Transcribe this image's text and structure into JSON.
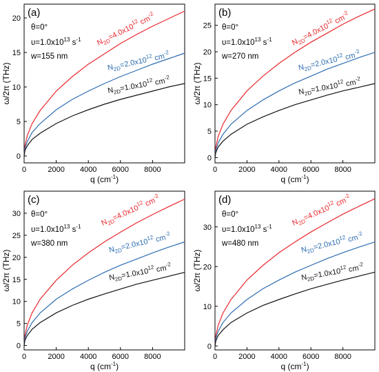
{
  "chart_data": [
    {
      "type": "line",
      "panel_label": "(a)",
      "annotations": [
        "θ=0°",
        "υ=1.0x10",
        "13",
        " s",
        "-1",
        "w=155 nm"
      ],
      "xlabel": "q (cm",
      "xlabel_sup": "-1",
      "xlabel_end": ")",
      "ylabel": "ω/2π (THz)",
      "xlim": [
        0,
        10000
      ],
      "ylim": [
        -1,
        22
      ],
      "xticks": [
        0,
        2000,
        4000,
        6000,
        8000
      ],
      "yticks": [
        0,
        5,
        10,
        15,
        20
      ],
      "series": [
        {
          "name": "N2D=4.0x1012 cm-2",
          "label": [
            "N",
            "2D",
            "=4.0x10",
            "12",
            " cm",
            "-2"
          ],
          "color": "#e8262b",
          "x": [
            0,
            50,
            200,
            500,
            1000,
            2000,
            3000,
            4000,
            5000,
            6000,
            7000,
            8000,
            9000,
            10000
          ],
          "y": [
            0,
            1.5,
            3.0,
            4.7,
            6.6,
            9.4,
            11.5,
            13.3,
            14.8,
            16.3,
            17.6,
            18.8,
            19.9,
            21.0
          ]
        },
        {
          "name": "N2D=2.0x1012 cm-2",
          "label": [
            "N",
            "2D",
            "=2.0x10",
            "12",
            " cm",
            "-2"
          ],
          "color": "#2c6cb0",
          "x": [
            0,
            50,
            200,
            500,
            1000,
            2000,
            3000,
            4000,
            5000,
            6000,
            7000,
            8000,
            9000,
            10000
          ],
          "y": [
            0,
            1.1,
            2.1,
            3.4,
            4.7,
            6.7,
            8.2,
            9.4,
            10.5,
            11.5,
            12.4,
            13.3,
            14.1,
            14.9
          ]
        },
        {
          "name": "N2D=1.0x1012 cm-2",
          "label": [
            "N",
            "2D",
            "=1.0x10",
            "12",
            " cm",
            "-2"
          ],
          "color": "#111111",
          "x": [
            0,
            50,
            200,
            500,
            1000,
            2000,
            3000,
            4000,
            5000,
            6000,
            7000,
            8000,
            9000,
            10000
          ],
          "y": [
            0,
            0.8,
            1.5,
            2.4,
            3.3,
            4.7,
            5.8,
            6.7,
            7.5,
            8.2,
            8.8,
            9.4,
            10.0,
            10.5
          ]
        }
      ]
    },
    {
      "type": "line",
      "panel_label": "(b)",
      "annotations": [
        "θ=0°",
        "υ=1.0x10",
        "13",
        " s",
        "-1",
        "w=270 nm"
      ],
      "xlabel": "q (cm",
      "xlabel_sup": "-1",
      "xlabel_end": ")",
      "ylabel": "ω/2π (THz)",
      "xlim": [
        0,
        10000
      ],
      "ylim": [
        -1,
        29
      ],
      "xticks": [
        0,
        2000,
        4000,
        6000,
        8000
      ],
      "yticks": [
        0,
        5,
        10,
        15,
        20,
        25
      ],
      "series": [
        {
          "name": "N2D=4.0x1012 cm-2",
          "label": [
            "N",
            "2D",
            "=4.0x10",
            "12",
            " cm",
            "-2"
          ],
          "color": "#e8262b",
          "x": [
            0,
            50,
            200,
            500,
            1000,
            2000,
            3000,
            4000,
            5000,
            6000,
            7000,
            8000,
            9000,
            10000
          ],
          "y": [
            0,
            2.0,
            4.0,
            6.3,
            8.9,
            12.6,
            15.4,
            17.8,
            19.9,
            21.8,
            23.5,
            25.2,
            26.7,
            28.1
          ]
        },
        {
          "name": "N2D=2.0x1012 cm-2",
          "label": [
            "N",
            "2D",
            "=2.0x10",
            "12",
            " cm",
            "-2"
          ],
          "color": "#2c6cb0",
          "x": [
            0,
            50,
            200,
            500,
            1000,
            2000,
            3000,
            4000,
            5000,
            6000,
            7000,
            8000,
            9000,
            10000
          ],
          "y": [
            0,
            1.4,
            2.8,
            4.4,
            6.3,
            8.9,
            10.9,
            12.6,
            14.1,
            15.4,
            16.7,
            17.8,
            18.9,
            19.9
          ]
        },
        {
          "name": "N2D=1.0x1012 cm-2",
          "label": [
            "N",
            "2D",
            "=1.0x10",
            "12",
            " cm",
            "-2"
          ],
          "color": "#111111",
          "x": [
            0,
            50,
            200,
            500,
            1000,
            2000,
            3000,
            4000,
            5000,
            6000,
            7000,
            8000,
            9000,
            10000
          ],
          "y": [
            0,
            1.0,
            2.0,
            3.1,
            4.4,
            6.3,
            7.7,
            8.9,
            10.0,
            10.9,
            11.8,
            12.6,
            13.3,
            14.0
          ]
        }
      ]
    },
    {
      "type": "line",
      "panel_label": "(c)",
      "annotations": [
        "θ=0°",
        "υ=1.0x10",
        "13",
        " s",
        "-1",
        "w=380 nm"
      ],
      "xlabel": "q (cm",
      "xlabel_sup": "-1",
      "xlabel_end": ")",
      "ylabel": "ω/2π (THz)",
      "xlim": [
        0,
        10000
      ],
      "ylim": [
        -1,
        35
      ],
      "xticks": [
        0,
        2000,
        4000,
        6000,
        8000
      ],
      "yticks": [
        0,
        5,
        10,
        15,
        20,
        25,
        30
      ],
      "series": [
        {
          "name": "N2D=4.0x1012 cm-2",
          "label": [
            "N",
            "2D",
            "=4.0x10",
            "12",
            " cm",
            "-2"
          ],
          "color": "#e8262b",
          "x": [
            0,
            50,
            200,
            500,
            1000,
            2000,
            3000,
            4000,
            5000,
            6000,
            7000,
            8000,
            9000,
            10000
          ],
          "y": [
            0,
            2.3,
            4.7,
            7.4,
            10.5,
            14.8,
            18.2,
            21.0,
            23.5,
            25.7,
            27.8,
            29.7,
            31.5,
            33.2
          ]
        },
        {
          "name": "N2D=2.0x1012 cm-2",
          "label": [
            "N",
            "2D",
            "=2.0x10",
            "12",
            " cm",
            "-2"
          ],
          "color": "#2c6cb0",
          "x": [
            0,
            50,
            200,
            500,
            1000,
            2000,
            3000,
            4000,
            5000,
            6000,
            7000,
            8000,
            9000,
            10000
          ],
          "y": [
            0,
            1.7,
            3.3,
            5.2,
            7.4,
            10.5,
            12.8,
            14.8,
            16.6,
            18.2,
            19.6,
            21.0,
            22.3,
            23.5
          ]
        },
        {
          "name": "N2D=1.0x1012 cm-2",
          "label": [
            "N",
            "2D",
            "=1.0x10",
            "12",
            " cm",
            "-2"
          ],
          "color": "#111111",
          "x": [
            0,
            50,
            200,
            500,
            1000,
            2000,
            3000,
            4000,
            5000,
            6000,
            7000,
            8000,
            9000,
            10000
          ],
          "y": [
            0,
            1.2,
            2.3,
            3.7,
            5.2,
            7.4,
            9.1,
            10.5,
            11.7,
            12.8,
            13.9,
            14.8,
            15.7,
            16.6
          ]
        }
      ]
    },
    {
      "type": "line",
      "panel_label": "(d)",
      "annotations": [
        "θ=0°",
        "υ=1.0x10",
        "13",
        " s",
        "-1",
        "w=480 nm"
      ],
      "xlabel": "q (cm",
      "xlabel_sup": "-1",
      "xlabel_end": ")",
      "ylabel": "ω/2π (THz)",
      "xlim": [
        0,
        10000
      ],
      "ylim": [
        -1,
        39
      ],
      "xticks": [
        0,
        2000,
        4000,
        6000,
        8000
      ],
      "yticks": [
        0,
        10,
        20,
        30
      ],
      "series": [
        {
          "name": "N2D=4.0x1012 cm-2",
          "label": [
            "N",
            "2D",
            "=4.0x10",
            "12",
            " cm",
            "-2"
          ],
          "color": "#e8262b",
          "x": [
            0,
            50,
            200,
            500,
            1000,
            2000,
            3000,
            4000,
            5000,
            6000,
            7000,
            8000,
            9000,
            10000
          ],
          "y": [
            0,
            2.6,
            5.2,
            8.3,
            11.7,
            16.6,
            20.3,
            23.5,
            26.2,
            28.7,
            31.0,
            33.2,
            35.2,
            37.1
          ]
        },
        {
          "name": "N2D=2.0x1012 cm-2",
          "label": [
            "N",
            "2D",
            "=2.0x10",
            "12",
            " cm",
            "-2"
          ],
          "color": "#2c6cb0",
          "x": [
            0,
            50,
            200,
            500,
            1000,
            2000,
            3000,
            4000,
            5000,
            6000,
            7000,
            8000,
            9000,
            10000
          ],
          "y": [
            0,
            1.9,
            3.7,
            5.9,
            8.3,
            11.7,
            14.4,
            16.6,
            18.6,
            20.3,
            22.0,
            23.5,
            24.9,
            26.2
          ]
        },
        {
          "name": "N2D=1.0x1012 cm-2",
          "label": [
            "N",
            "2D",
            "=1.0x10",
            "12",
            " cm",
            "-2"
          ],
          "color": "#111111",
          "x": [
            0,
            50,
            200,
            500,
            1000,
            2000,
            3000,
            4000,
            5000,
            6000,
            7000,
            8000,
            9000,
            10000
          ],
          "y": [
            0,
            1.3,
            2.6,
            4.1,
            5.9,
            8.3,
            10.2,
            11.7,
            13.1,
            14.4,
            15.5,
            16.6,
            17.6,
            18.6
          ]
        }
      ]
    }
  ]
}
